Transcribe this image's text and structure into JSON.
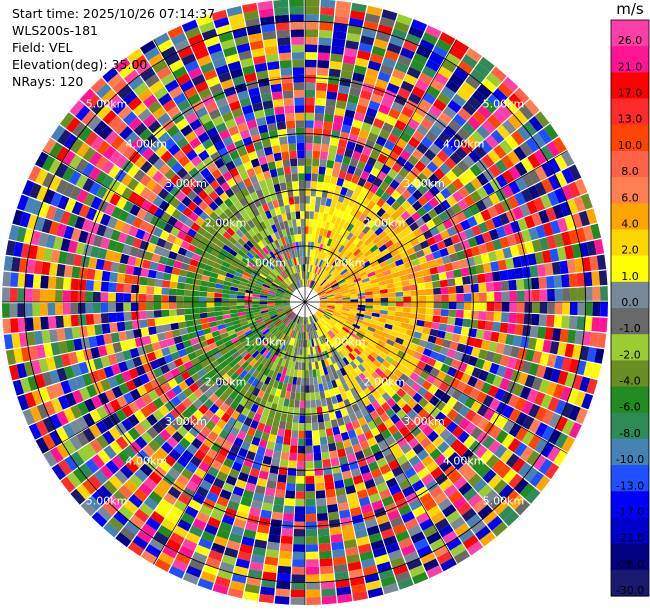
{
  "header": {
    "start_time": "Start time: 2025/10/26 07:14:37",
    "instrument": "WLS200s-181",
    "field": "Field: VEL",
    "elevation": "Elevation(deg): 35.00",
    "nrays": "NRays: 120"
  },
  "colorbar": {
    "unit": "m/s",
    "labels": [
      "26.0",
      "21.0",
      "17.0",
      "13.0",
      "10.0",
      "8.0",
      "6.0",
      "4.0",
      "2.0",
      "1.0",
      "0.0",
      "-1.0",
      "-2.0",
      "-4.0",
      "-6.0",
      "-8.0",
      "-10.0",
      "-13.0",
      "-17.0",
      "-21.0",
      "-26.0",
      "-30.0"
    ],
    "colors": [
      "#ff3fa8",
      "#ff1493",
      "#ff0000",
      "#ff2a2a",
      "#ff4500",
      "#ff6347",
      "#ff7f50",
      "#ffa500",
      "#ffd700",
      "#ffff00",
      "#778899",
      "#696969",
      "#9acd32",
      "#6b8e23",
      "#228b22",
      "#2e8b57",
      "#4682b4",
      "#1e50ff",
      "#0000ff",
      "#0000cd",
      "#000080",
      "#191970"
    ]
  },
  "chart_data": {
    "type": "heatmap",
    "projection": "polar PPI",
    "field": "VEL",
    "unit": "m/s",
    "n_rays": 120,
    "range_rings_km": [
      1,
      2,
      3,
      4,
      5
    ],
    "ring_labels": [
      "1.00km",
      "2.00km",
      "3.00km",
      "4.00km",
      "5.00km"
    ],
    "max_range_km": 5.4,
    "color_levels": [
      -30,
      -26,
      -21,
      -17,
      -13,
      -10,
      -8,
      -6,
      -4,
      -2,
      -1,
      0,
      1,
      2,
      4,
      6,
      8,
      10,
      13,
      17,
      21,
      26
    ],
    "value_range": [
      -30,
      26
    ]
  }
}
